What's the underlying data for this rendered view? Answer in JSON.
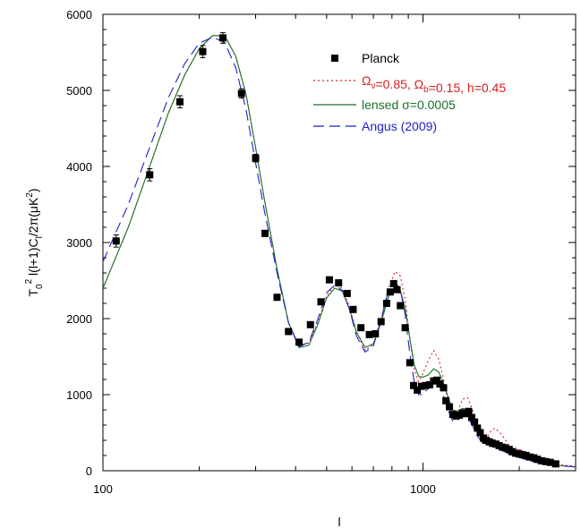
{
  "chart_data": {
    "type": "scatter",
    "title": "",
    "xlabel": "l",
    "ylabel": {
      "parts": [
        "T",
        "0",
        "2",
        " l(l+1)C",
        "l",
        "/2π(μK",
        "2",
        ")"
      ]
    },
    "x_scale": "log",
    "xlim": [
      100,
      3000
    ],
    "ylim": [
      0,
      6000
    ],
    "x_ticks": [
      {
        "value": 100,
        "label": "100"
      },
      {
        "value": 1000,
        "label": "1000"
      }
    ],
    "y_ticks": [
      {
        "value": 0,
        "label": "0"
      },
      {
        "value": 1000,
        "label": "1000"
      },
      {
        "value": 2000,
        "label": "2000"
      },
      {
        "value": 3000,
        "label": "3000"
      },
      {
        "value": 4000,
        "label": "4000"
      },
      {
        "value": 5000,
        "label": "5000"
      },
      {
        "value": 6000,
        "label": "6000"
      }
    ],
    "grid": false,
    "legend_position": "top-right",
    "series": [
      {
        "name": "Planck",
        "kind": "points",
        "color": "#000000",
        "x": [
          110,
          140,
          174,
          205,
          237,
          271,
          300,
          321,
          350,
          380,
          410,
          445,
          480,
          510,
          545,
          580,
          605,
          640,
          680,
          710,
          740,
          770,
          790,
          810,
          830,
          850,
          880,
          910,
          935,
          960,
          990,
          1020,
          1050,
          1080,
          1105,
          1130,
          1160,
          1180,
          1210,
          1240,
          1270,
          1300,
          1330,
          1360,
          1390,
          1420,
          1450,
          1480,
          1510,
          1545,
          1575,
          1610,
          1650,
          1690,
          1730,
          1770,
          1810,
          1860,
          1900,
          1950,
          2000,
          2050,
          2100,
          2160,
          2220,
          2280,
          2350,
          2420,
          2500,
          2600
        ],
        "y": [
          3020,
          3890,
          4850,
          5510,
          5690,
          4960,
          4110,
          3120,
          2280,
          1830,
          1690,
          1920,
          2220,
          2510,
          2470,
          2330,
          2120,
          1880,
          1790,
          1800,
          1960,
          2200,
          2350,
          2460,
          2380,
          2170,
          1880,
          1420,
          1120,
          1060,
          1110,
          1120,
          1130,
          1180,
          1190,
          1140,
          1090,
          920,
          840,
          740,
          720,
          730,
          760,
          750,
          780,
          700,
          640,
          560,
          500,
          430,
          400,
          380,
          360,
          350,
          330,
          310,
          300,
          280,
          250,
          230,
          220,
          210,
          200,
          180,
          170,
          150,
          130,
          120,
          110,
          90
        ],
        "yerr": [
          80,
          80,
          80,
          80,
          70,
          60,
          50,
          40,
          30,
          30,
          30,
          30,
          30,
          30,
          30,
          30,
          30,
          30,
          30,
          30,
          30,
          30,
          30,
          30,
          30,
          30,
          30,
          30,
          30,
          30,
          30,
          30,
          30,
          30,
          30,
          30,
          30,
          30,
          30,
          30,
          30,
          30,
          30,
          30,
          30,
          30,
          30,
          30,
          30,
          30,
          30,
          30,
          30,
          30,
          30,
          30,
          30,
          30,
          30,
          30,
          30,
          30,
          30,
          30,
          30,
          30,
          30,
          30,
          30,
          30
        ]
      },
      {
        "name": "Ω",
        "label_parts": [
          {
            "t": "Ω",
            "sub": "ν"
          },
          {
            "t": "=0.85, "
          },
          {
            "t": "Ω",
            "sub": "b"
          },
          {
            "t": "=0.15, h=0.45"
          }
        ],
        "kind": "line",
        "style": "dotted",
        "color": "#d62020",
        "x": [
          100,
          120,
          140,
          160,
          180,
          200,
          220,
          240,
          260,
          280,
          300,
          320,
          350,
          380,
          410,
          440,
          470,
          500,
          530,
          560,
          590,
          620,
          660,
          700,
          740,
          780,
          820,
          850,
          880,
          910,
          940,
          970,
          1000,
          1040,
          1080,
          1120,
          1160,
          1200,
          1240,
          1280,
          1330,
          1380,
          1430,
          1480,
          1530,
          1580,
          1630,
          1680,
          1740,
          1800,
          1860,
          1920,
          1980,
          2050,
          2120,
          2200,
          2300,
          2400,
          2500,
          2650,
          2800,
          3000
        ],
        "y": [
          2400,
          3200,
          4000,
          4700,
          5200,
          5550,
          5720,
          5720,
          5450,
          4950,
          4250,
          3550,
          2650,
          1950,
          1650,
          1680,
          1950,
          2300,
          2440,
          2400,
          2150,
          1820,
          1580,
          1660,
          2000,
          2400,
          2620,
          2560,
          2250,
          1740,
          1320,
          1170,
          1280,
          1450,
          1580,
          1470,
          1200,
          900,
          720,
          760,
          940,
          960,
          790,
          600,
          440,
          430,
          520,
          560,
          500,
          420,
          330,
          300,
          290,
          260,
          220,
          180,
          150,
          130,
          110,
          90,
          70,
          60
        ]
      },
      {
        "name": "lensed σ=0.0005",
        "kind": "line",
        "style": "solid",
        "color": "#1a6e2a",
        "x": [
          100,
          120,
          140,
          160,
          180,
          200,
          220,
          240,
          260,
          280,
          300,
          320,
          350,
          380,
          410,
          440,
          470,
          500,
          530,
          560,
          590,
          620,
          660,
          700,
          740,
          780,
          820,
          850,
          880,
          910,
          940,
          970,
          1000,
          1040,
          1080,
          1120,
          1160,
          1200,
          1240,
          1280,
          1330,
          1380,
          1430,
          1480,
          1530,
          1580,
          1630,
          1680,
          1740,
          1800,
          1860,
          1920,
          1980,
          2050,
          2120,
          2200,
          2300,
          2400,
          2500,
          2650,
          2800,
          3000
        ],
        "y": [
          2400,
          3200,
          4000,
          4700,
          5200,
          5550,
          5720,
          5720,
          5450,
          4950,
          4250,
          3550,
          2650,
          1950,
          1620,
          1650,
          1930,
          2270,
          2400,
          2360,
          2120,
          1820,
          1620,
          1670,
          1950,
          2280,
          2430,
          2370,
          2130,
          1740,
          1390,
          1240,
          1230,
          1260,
          1340,
          1300,
          1150,
          960,
          800,
          780,
          820,
          800,
          700,
          560,
          460,
          420,
          420,
          400,
          340,
          290,
          250,
          220,
          200,
          180,
          160,
          140,
          120,
          110,
          90,
          70,
          60,
          50
        ]
      },
      {
        "name": "Angus (2009)",
        "kind": "line",
        "style": "dashed",
        "color": "#2020c8",
        "x": [
          100,
          120,
          140,
          160,
          180,
          200,
          220,
          240,
          260,
          280,
          300,
          320,
          350,
          380,
          410,
          440,
          470,
          500,
          530,
          560,
          590,
          620,
          660,
          700,
          740,
          780,
          820,
          850,
          880,
          910,
          940,
          970,
          1000,
          1040,
          1080,
          1120,
          1160,
          1200,
          1240,
          1280,
          1330,
          1380,
          1430,
          1480,
          1530,
          1580,
          1630,
          1680,
          1740,
          1800,
          1860,
          1920,
          1980,
          2050,
          2120,
          2200,
          2300,
          2400,
          2500,
          2650,
          2800,
          3000
        ],
        "y": [
          2750,
          3500,
          4250,
          4900,
          5350,
          5620,
          5700,
          5630,
          5300,
          4750,
          4050,
          3400,
          2600,
          1950,
          1630,
          1690,
          2000,
          2340,
          2440,
          2370,
          2120,
          1770,
          1560,
          1640,
          1990,
          2360,
          2480,
          2380,
          2050,
          1540,
          1160,
          1000,
          1000,
          1090,
          1180,
          1150,
          980,
          790,
          650,
          660,
          730,
          700,
          590,
          460,
          370,
          350,
          370,
          350,
          300,
          250,
          220,
          200,
          180,
          160,
          140,
          120,
          100,
          90,
          80,
          70,
          60,
          50
        ]
      }
    ]
  }
}
